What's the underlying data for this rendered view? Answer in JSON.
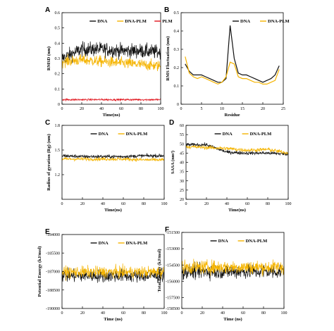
{
  "colors": {
    "black": "#111111",
    "orange": "#f5b400",
    "red": "#e0141c"
  },
  "chart_data": [
    {
      "panel": "A",
      "type": "line",
      "xlabel": "Time(ns)",
      "ylabel": "RMSD (nm)",
      "xlim": [
        0,
        100
      ],
      "ylim": [
        0,
        0.6
      ],
      "xticks": [
        "0",
        "20",
        "40",
        "60",
        "80",
        "100"
      ],
      "yticks": [
        "0",
        "0.1",
        "0.2",
        "0.3",
        "0.4",
        "0.5",
        "0.6"
      ],
      "legend": "top",
      "series": [
        {
          "name": "DNA",
          "color": "#111111",
          "kind": "noise",
          "mean": [
            0.3,
            0.36,
            0.36,
            0.35,
            0.35,
            0.34
          ],
          "noise": 0.045
        },
        {
          "name": "DNA-PLM",
          "color": "#f5b400",
          "kind": "noise",
          "mean": [
            0.28,
            0.29,
            0.28,
            0.27,
            0.26,
            0.25
          ],
          "noise": 0.035
        },
        {
          "name": "PLM",
          "color": "#e0141c",
          "kind": "noise",
          "mean": [
            0.03,
            0.03,
            0.03,
            0.03,
            0.03,
            0.03
          ],
          "noise": 0.006
        }
      ]
    },
    {
      "panel": "B",
      "type": "line",
      "xlabel": "Residue",
      "ylabel": "RMS Fluctuation (nm)",
      "xlim": [
        0,
        25
      ],
      "ylim": [
        0,
        0.5
      ],
      "xticks": [
        "0",
        "5",
        "10",
        "15",
        "20",
        "25"
      ],
      "yticks": [
        "0",
        "0.1",
        "0.2",
        "0.3",
        "0.4",
        "0.5"
      ],
      "legend": "top-right",
      "series": [
        {
          "name": "DNA",
          "color": "#111111",
          "kind": "points",
          "x": [
            1,
            2,
            3,
            4,
            5,
            6,
            7,
            8,
            9,
            10,
            11,
            12,
            13,
            14,
            15,
            16,
            17,
            18,
            19,
            20,
            21,
            22,
            23,
            24
          ],
          "y": [
            0.22,
            0.18,
            0.16,
            0.16,
            0.16,
            0.15,
            0.14,
            0.13,
            0.12,
            0.12,
            0.14,
            0.43,
            0.25,
            0.17,
            0.16,
            0.16,
            0.15,
            0.14,
            0.13,
            0.12,
            0.13,
            0.14,
            0.16,
            0.21
          ]
        },
        {
          "name": "DNA-PLM",
          "color": "#f5b400",
          "kind": "points",
          "x": [
            1,
            2,
            3,
            4,
            5,
            6,
            7,
            8,
            9,
            10,
            11,
            12,
            13,
            14,
            15,
            16,
            17,
            18,
            19,
            20,
            21,
            22,
            23,
            24
          ],
          "y": [
            0.26,
            0.17,
            0.15,
            0.14,
            0.15,
            0.14,
            0.13,
            0.12,
            0.11,
            0.12,
            0.15,
            0.23,
            0.22,
            0.15,
            0.14,
            0.14,
            0.13,
            0.12,
            0.12,
            0.11,
            0.11,
            0.12,
            0.13,
            0.19
          ]
        }
      ]
    },
    {
      "panel": "C",
      "type": "line",
      "xlabel": "Time(ns)",
      "ylabel": "Radius of gyration (Rg) (nm)",
      "xlim": [
        0,
        100
      ],
      "ylim": [
        0.9,
        1.8
      ],
      "xticks": [
        "0",
        "20",
        "40",
        "60",
        "80",
        "100"
      ],
      "yticks": [
        "1.2",
        "1.5",
        "1.8"
      ],
      "legend": "top",
      "series": [
        {
          "name": "DNA",
          "color": "#111111",
          "kind": "noise",
          "mean": [
            1.43,
            1.42,
            1.42,
            1.42,
            1.43,
            1.43
          ],
          "noise": 0.02
        },
        {
          "name": "DNA-PLM",
          "color": "#f5b400",
          "kind": "noise",
          "mean": [
            1.39,
            1.39,
            1.39,
            1.39,
            1.38,
            1.38
          ],
          "noise": 0.02
        }
      ]
    },
    {
      "panel": "D",
      "type": "line",
      "xlabel": "Time(ns)",
      "ylabel": "SASA (nm²)",
      "xlim": [
        0,
        100
      ],
      "ylim": [
        20,
        60
      ],
      "xticks": [
        "0",
        "20",
        "40",
        "60",
        "80",
        "100"
      ],
      "yticks": [
        "20",
        "25",
        "30",
        "35",
        "40",
        "45",
        "50",
        "55",
        "60"
      ],
      "legend": "top",
      "series": [
        {
          "name": "DNA",
          "color": "#111111",
          "kind": "noise",
          "mean": [
            49.5,
            49.5,
            45.5,
            45,
            45,
            44.5
          ],
          "noise": 0.9
        },
        {
          "name": "DNA-PLM",
          "color": "#f5b400",
          "kind": "noise",
          "mean": [
            48.5,
            48,
            47.5,
            46.5,
            47,
            45
          ],
          "noise": 1.0
        }
      ]
    },
    {
      "panel": "E",
      "type": "line",
      "xlabel": "Time (ns)",
      "ylabel": "Potential Energy (kJ/mol)",
      "xlim": [
        0,
        100
      ],
      "ylim": [
        -190000,
        -184000
      ],
      "xticks": [
        "0",
        "20",
        "40",
        "60",
        "80",
        "100"
      ],
      "yticks": [
        "-184000",
        "-185500",
        "-187000",
        "-188500",
        "-190000"
      ],
      "legend": "top",
      "series": [
        {
          "name": "DNA",
          "color": "#111111",
          "kind": "noise",
          "mean": [
            -187350,
            -187350,
            -187350,
            -187350,
            -187350,
            -187350
          ],
          "noise": 500
        },
        {
          "name": "DNA-PLM",
          "color": "#f5b400",
          "kind": "noise",
          "mean": [
            -187050,
            -187050,
            -187050,
            -187050,
            -187050,
            -187050
          ],
          "noise": 450
        }
      ]
    },
    {
      "panel": "F",
      "type": "line",
      "xlabel": "Time (ns)",
      "ylabel": "Total Energy (kJ/mol)",
      "xlim": [
        0,
        100
      ],
      "ylim": [
        -158500,
        -151500
      ],
      "xticks": [
        "0",
        "20",
        "40",
        "60",
        "80",
        "100"
      ],
      "yticks": [
        "-151500",
        "-153000",
        "-154500",
        "-156000",
        "-157500",
        "-158500"
      ],
      "legend": "top",
      "series": [
        {
          "name": "DNA",
          "color": "#111111",
          "kind": "noise",
          "mean": [
            -155100,
            -155100,
            -155100,
            -155100,
            -155100,
            -155100
          ],
          "noise": 650
        },
        {
          "name": "DNA-PLM",
          "color": "#f5b400",
          "kind": "noise",
          "mean": [
            -154700,
            -154700,
            -154700,
            -154700,
            -154700,
            -154700
          ],
          "noise": 600
        }
      ]
    }
  ]
}
